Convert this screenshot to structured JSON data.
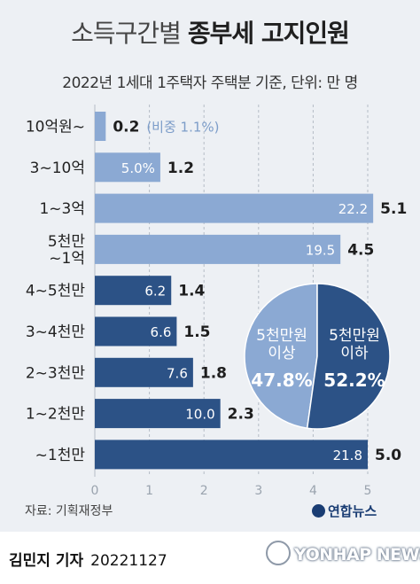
{
  "header": {
    "title_light": "소득구간별",
    "title_bold": "종부세 고지인원",
    "subtitle": "2022년 1세대 1주택자 주택분 기준, 단위: 만 명"
  },
  "chart_data": {
    "type": "bar",
    "orientation": "horizontal",
    "title": "소득구간별 종부세 고지인원",
    "subtitle": "2022년 1세대 1주택자 주택분 기준, 단위: 만 명",
    "categories": [
      "10억원~",
      "3~10억",
      "1~3억",
      "5천만 ~1억",
      "4~5천만",
      "3~4천만",
      "2~3천만",
      "1~2천만",
      "~1천만"
    ],
    "values": [
      0.2,
      1.2,
      5.1,
      4.5,
      1.4,
      1.5,
      1.8,
      2.3,
      5.0
    ],
    "value_labels": [
      "0.2",
      "1.2",
      "5.1",
      "4.5",
      "1.4",
      "1.5",
      "1.8",
      "2.3",
      "5.0"
    ],
    "share_labels": [
      "(비중 1.1%)",
      "5.0%",
      "22.2",
      "19.5",
      "6.2",
      "6.6",
      "7.6",
      "10.0",
      "21.8"
    ],
    "group_a": [
      0,
      1,
      2,
      3
    ],
    "group_b": [
      4,
      5,
      6,
      7,
      8
    ],
    "xlim": [
      0,
      5
    ],
    "xticks": [
      "0",
      "1",
      "2",
      "3",
      "4",
      "5"
    ],
    "grid": true,
    "colors": {
      "group_a": "#8ba9d3",
      "group_b": "#2c5286",
      "axis": "#b5bcc6"
    },
    "pie": {
      "slices": [
        {
          "lines": [
            "5천만원",
            "이상"
          ],
          "value": 47.8,
          "label": "47.8%",
          "color": "#8ba9d3"
        },
        {
          "lines": [
            "5천만원",
            "이하"
          ],
          "value": 52.2,
          "label": "52.2%",
          "color": "#2c5286"
        }
      ]
    }
  },
  "source": "자료: 기획재정부",
  "logo": "연합뉴스",
  "footer": {
    "reporter": "김민지 기자",
    "date": "20221127",
    "watermark": "YONHAP NEWS"
  }
}
